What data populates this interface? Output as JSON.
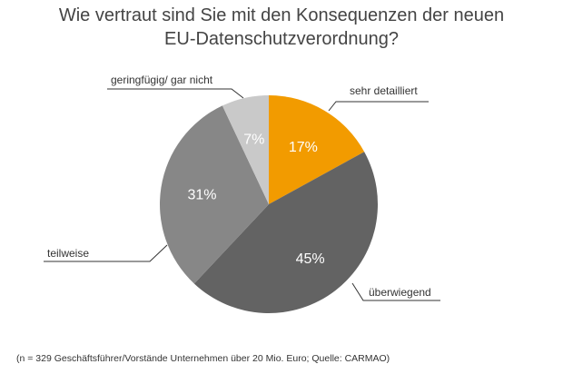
{
  "chart_data": {
    "type": "pie",
    "title": [
      "Wie vertraut sind Sie mit den Konsequenzen der neuen",
      "EU-Datenschutzverordnung?"
    ],
    "slices": [
      {
        "label": "sehr detailliert",
        "value": 17,
        "data_label": "17%",
        "color": "#F29B00"
      },
      {
        "label": "überwiegend",
        "value": 45,
        "data_label": "45%",
        "color": "#636363"
      },
      {
        "label": "teilweise",
        "value": 31,
        "data_label": "31%",
        "color": "#878787"
      },
      {
        "label": "geringfügig/ gar nicht",
        "value": 7,
        "data_label": "7%",
        "color": "#C9C9C9"
      }
    ],
    "start": "top",
    "direction": "clockwise",
    "legend": "none"
  },
  "footnote": "(n = 329 Geschäftsführer/Vorstände Unternehmen über 20 Mio. Euro; Quelle: CARMAO)"
}
